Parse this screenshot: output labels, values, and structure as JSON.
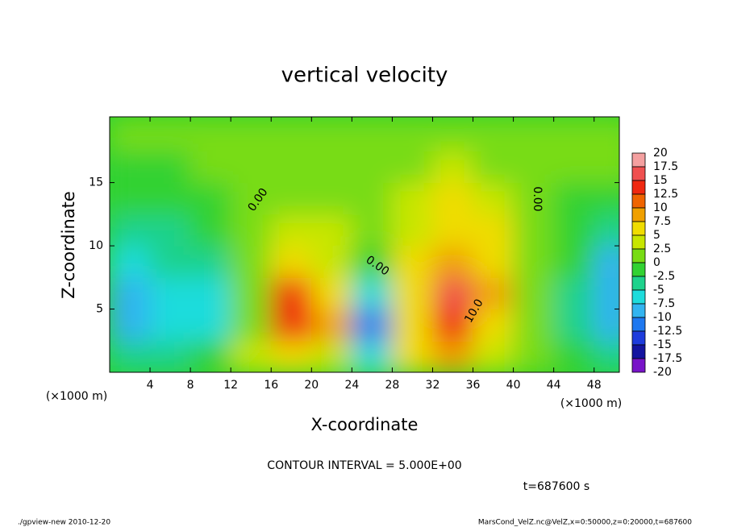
{
  "chart_data": {
    "type": "heatmap",
    "title": "vertical velocity",
    "x_label": "X-coordinate",
    "y_label": "Z-coordinate",
    "x_unit_left": "(×1000 m)",
    "x_unit_right": "(×1000 m)",
    "contour_interval": "CONTOUR INTERVAL = 5.000E+00",
    "time": "t=687600 s",
    "footer_left": "./gpview-new   2010-12-20",
    "footer_right": "MarsCond_VelZ.nc@VelZ,x=0:50000,z=0:20000,t=687600",
    "annotations": [
      "0.00",
      "0.00",
      "0.00",
      "10.0"
    ],
    "xlim": [
      0,
      50.5
    ],
    "ylim": [
      0,
      20.2
    ],
    "xticks": [
      4,
      8,
      12,
      16,
      20,
      24,
      28,
      32,
      36,
      40,
      44,
      48
    ],
    "yticks": [
      5,
      10,
      15
    ],
    "x": [
      2,
      6,
      10,
      14,
      18,
      22,
      26,
      30,
      34,
      38,
      42,
      46,
      50
    ],
    "z": [
      1.25,
      3.75,
      6.25,
      8.75,
      11.25,
      13.75,
      16.25,
      18.75
    ],
    "values": [
      [
        -5,
        -10,
        -10,
        -7.5,
        -5,
        -2.5,
        -2.5,
        0
      ],
      [
        -5,
        -7.5,
        -7.5,
        -5,
        -5,
        -2.5,
        -2.5,
        0
      ],
      [
        -2.5,
        -7.5,
        -7.5,
        -5,
        -2.5,
        -2.5,
        0,
        0
      ],
      [
        2.5,
        0,
        0,
        0,
        0,
        0,
        0,
        0
      ],
      [
        5,
        12.5,
        12.5,
        5,
        2.5,
        0,
        0,
        0
      ],
      [
        2.5,
        7.5,
        5,
        2.5,
        2.5,
        0,
        0,
        0
      ],
      [
        -7.5,
        -12.5,
        -7.5,
        -2.5,
        0,
        0,
        0,
        0
      ],
      [
        5,
        5,
        5,
        5,
        2.5,
        2.5,
        0,
        0
      ],
      [
        7.5,
        12.5,
        15,
        7.5,
        5,
        5,
        2.5,
        0
      ],
      [
        2.5,
        5,
        7.5,
        5,
        5,
        2.5,
        0,
        0
      ],
      [
        0,
        0,
        0,
        0,
        0,
        0,
        0,
        0
      ],
      [
        -2.5,
        -5,
        -5,
        -2.5,
        -2.5,
        -2.5,
        0,
        0
      ],
      [
        -5,
        -10,
        -10,
        -10,
        -5,
        -2.5,
        0,
        0
      ]
    ],
    "levels": [
      20,
      17.5,
      15,
      12.5,
      10,
      7.5,
      5,
      2.5,
      0,
      -2.5,
      -5,
      -7.5,
      -10,
      -12.5,
      -15,
      -17.5,
      -20
    ],
    "colors": [
      "#f4a0a0",
      "#f05050",
      "#f02810",
      "#f06400",
      "#f0a000",
      "#f0dc00",
      "#c8e600",
      "#78dc14",
      "#32d232",
      "#1ed28c",
      "#1edcdc",
      "#32b4f0",
      "#1e78f0",
      "#1e3cdc",
      "#1414a0",
      "#7814c8"
    ]
  }
}
